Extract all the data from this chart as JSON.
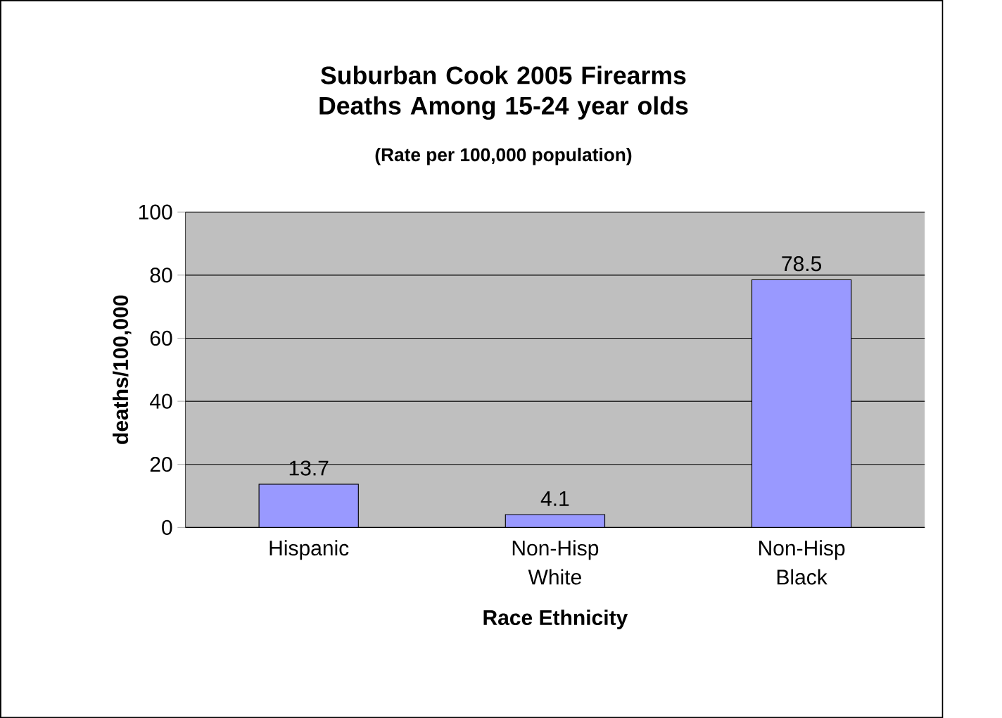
{
  "chart_data": {
    "type": "bar",
    "title": "Suburban Cook 2005 Firearms Deaths Among 15-24 year olds",
    "subtitle": "(Rate per 100,000 population)",
    "xlabel": "Race Ethnicity",
    "ylabel": "deaths/100,000",
    "categories": [
      "Hispanic",
      "Non-Hisp White",
      "Non-Hisp Black"
    ],
    "values": [
      13.7,
      4.1,
      78.5
    ],
    "color": "#9999ff",
    "ylim": [
      0,
      100
    ],
    "yticks": [
      0,
      20,
      40,
      60,
      80,
      100
    ],
    "grid": "y",
    "data_labels": true
  }
}
